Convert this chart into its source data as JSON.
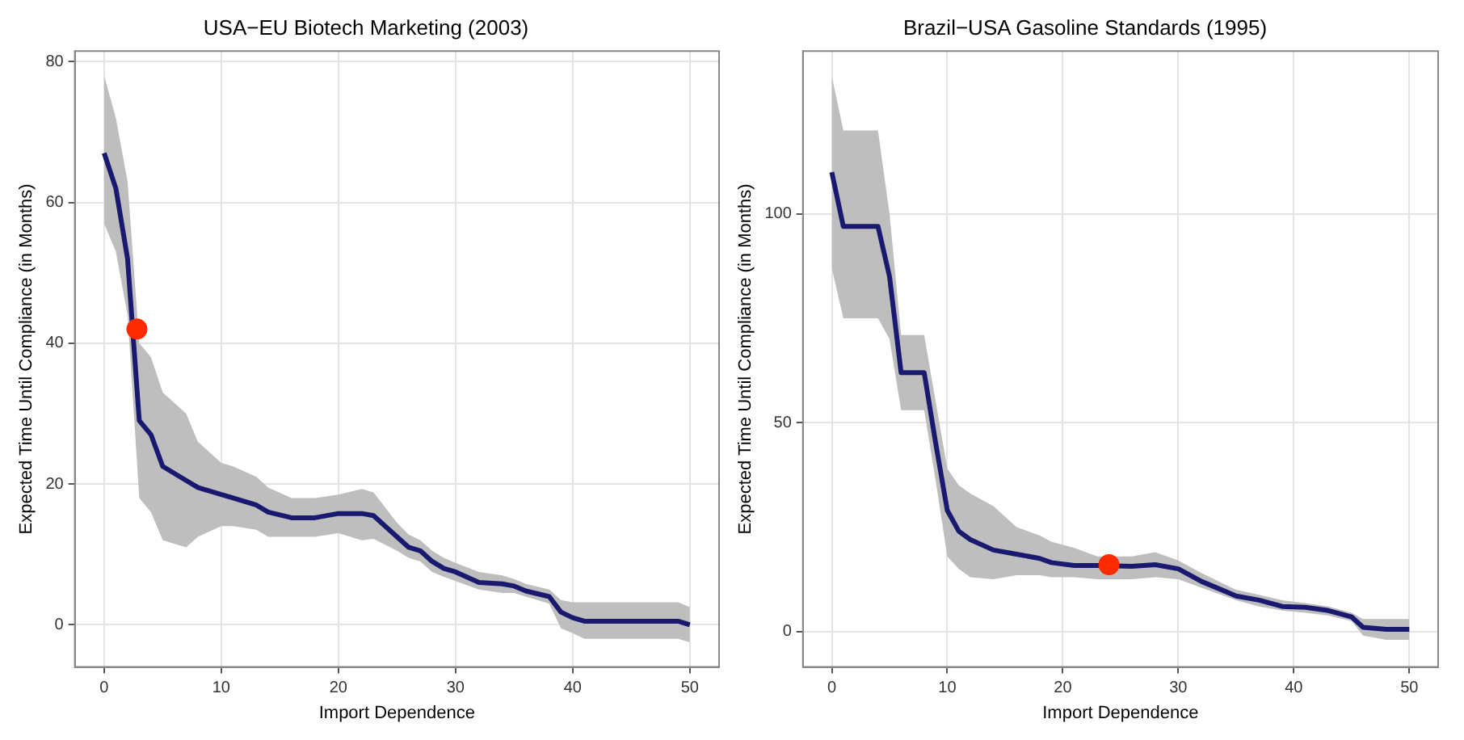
{
  "chart_data": [
    {
      "type": "line",
      "title": "USA−EU Biotech Marketing (2003)",
      "xlabel": "Import Dependence",
      "ylabel": "Expected Time Until Compliance (in Months)",
      "xlim": [
        -2.5,
        52.5
      ],
      "xticks": [
        0,
        10,
        20,
        30,
        40,
        50
      ],
      "ylim": [
        -6,
        81.5
      ],
      "yticks": [
        0,
        20,
        40,
        60,
        80
      ],
      "grid": true,
      "legend": false,
      "marker": "none",
      "series": [
        {
          "type": "line",
          "color": "#191970",
          "x": [
            0,
            1,
            2,
            3,
            4,
            5,
            7,
            8,
            10,
            11,
            13,
            14,
            16,
            18,
            20,
            22,
            23,
            25,
            26,
            27,
            28,
            29,
            30,
            32,
            34,
            35,
            36,
            38,
            39,
            40,
            41,
            49,
            50
          ],
          "values": [
            67,
            62,
            52,
            29,
            27,
            22.5,
            20.5,
            19.5,
            18.5,
            18,
            17,
            16,
            15.2,
            15.2,
            15.8,
            15.8,
            15.5,
            12.5,
            11,
            10.5,
            9,
            8,
            7.5,
            6,
            5.8,
            5.5,
            4.8,
            4,
            1.8,
            1,
            0.5,
            0.5,
            0
          ],
          "lower": [
            57,
            53,
            44,
            18,
            16,
            12,
            11,
            12.5,
            14,
            14,
            13.5,
            12.5,
            12.5,
            12.5,
            13,
            12,
            12.2,
            10.5,
            9.5,
            9,
            7.5,
            6.8,
            6.2,
            5,
            4.5,
            4.5,
            4,
            3,
            -0.5,
            -1.2,
            -2,
            -2,
            -2.5
          ],
          "upper": [
            78,
            72,
            63,
            40,
            38,
            33,
            30,
            26,
            23,
            22.5,
            21,
            19.5,
            18,
            18,
            18.5,
            19.3,
            18.8,
            14.5,
            12.8,
            12,
            10.5,
            9.5,
            8.8,
            7.5,
            7,
            6.5,
            5.8,
            5,
            3.5,
            3.2,
            3.2,
            3.2,
            2.5
          ]
        },
        {
          "type": "scatter",
          "color": "#ff2a00",
          "x": [
            2.8
          ],
          "values": [
            42
          ],
          "marker": "circle"
        }
      ]
    },
    {
      "type": "line",
      "title": "Brazil−USA Gasoline Standards (1995)",
      "xlabel": "Import Dependence",
      "ylabel": "Expected Time Until Compliance (in Months)",
      "xlim": [
        -2.5,
        52.5
      ],
      "xticks": [
        0,
        10,
        20,
        30,
        40,
        50
      ],
      "ylim": [
        -8.5,
        139
      ],
      "yticks": [
        0,
        50,
        100
      ],
      "grid": true,
      "legend": false,
      "marker": "none",
      "series": [
        {
          "type": "line",
          "color": "#191970",
          "x": [
            0,
            1,
            4,
            5,
            6,
            8,
            9,
            10,
            11,
            12,
            14,
            16,
            18,
            19,
            21,
            23,
            26,
            28,
            30,
            32,
            35,
            37,
            39,
            41,
            43,
            45,
            46,
            48,
            50
          ],
          "values": [
            110,
            97,
            97,
            85,
            62,
            62,
            45,
            29,
            24,
            22,
            19.5,
            18.5,
            17.5,
            16.5,
            15.8,
            15.8,
            15.6,
            16,
            15,
            12,
            8.5,
            7.5,
            6,
            5.8,
            5,
            3.5,
            1,
            0.5,
            0.5
          ],
          "lower": [
            87,
            75,
            75,
            70,
            53,
            53,
            36,
            18,
            15,
            13,
            12.5,
            13.5,
            13.5,
            13,
            13,
            12.5,
            12.5,
            13,
            12.5,
            10.5,
            7.5,
            6,
            5,
            4.5,
            3.8,
            2.5,
            -1,
            -2,
            -2
          ],
          "upper": [
            133,
            120,
            120,
            100,
            71,
            71,
            55,
            39,
            35,
            33,
            30,
            25,
            23,
            21.5,
            20,
            18,
            18,
            19,
            17,
            14,
            10,
            8.8,
            7.5,
            6.8,
            6,
            4.5,
            3,
            3,
            3
          ]
        },
        {
          "type": "scatter",
          "color": "#ff2a00",
          "x": [
            24
          ],
          "values": [
            16
          ],
          "marker": "circle"
        }
      ]
    }
  ]
}
